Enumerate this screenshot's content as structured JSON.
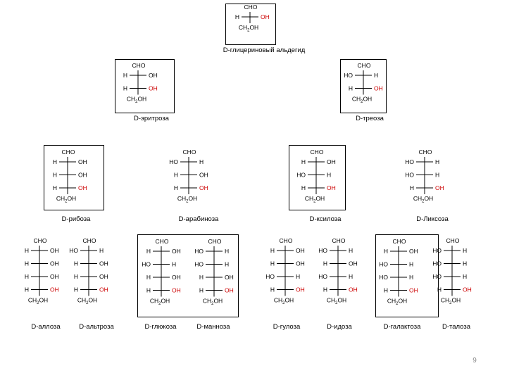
{
  "colors": {
    "text": "#000000",
    "highlight": "#cc0000",
    "box": "#000000",
    "page_number": "#8a8a8a"
  },
  "page_number": "9",
  "molecules": [
    {
      "id": "glyceraldehyde",
      "name": "D-глицериновый альдегид",
      "top": "CHO",
      "bottom_main": "CH",
      "bottom_sub": "2",
      "bottom_tail": "OH",
      "rows": [
        {
          "left": "H",
          "right": "OH",
          "red": "right"
        }
      ]
    },
    {
      "id": "erythrose",
      "name": "D-эритроза",
      "top": "CHO",
      "bottom_main": "CH",
      "bottom_sub": "2",
      "bottom_tail": "OH",
      "rows": [
        {
          "left": "H",
          "right": "OH",
          "red": ""
        },
        {
          "left": "H",
          "right": "OH",
          "red": "right"
        }
      ]
    },
    {
      "id": "threose",
      "name": "D-треоза",
      "top": "CHO",
      "bottom_main": "CH",
      "bottom_sub": "2",
      "bottom_tail": "OH",
      "rows": [
        {
          "left": "HO",
          "right": "H",
          "red": ""
        },
        {
          "left": "H",
          "right": "OH",
          "red": "right"
        }
      ]
    },
    {
      "id": "ribose",
      "name": "D-рибоза",
      "top": "CHO",
      "bottom_main": "CH",
      "bottom_sub": "2",
      "bottom_tail": "OH",
      "rows": [
        {
          "left": "H",
          "right": "OH",
          "red": ""
        },
        {
          "left": "H",
          "right": "OH",
          "red": ""
        },
        {
          "left": "H",
          "right": "OH",
          "red": "right"
        }
      ]
    },
    {
      "id": "arabinose",
      "name": "D-арабиноза",
      "top": "CHO",
      "bottom_main": "CH",
      "bottom_sub": "2",
      "bottom_tail": "OH",
      "rows": [
        {
          "left": "HO",
          "right": "H",
          "red": ""
        },
        {
          "left": "H",
          "right": "OH",
          "red": ""
        },
        {
          "left": "H",
          "right": "OH",
          "red": "right"
        }
      ]
    },
    {
      "id": "xylose",
      "name": "D-ксилоза",
      "top": "CHO",
      "bottom_main": "CH",
      "bottom_sub": "2",
      "bottom_tail": "OH",
      "rows": [
        {
          "left": "H",
          "right": "OH",
          "red": ""
        },
        {
          "left": "HO",
          "right": "H",
          "red": ""
        },
        {
          "left": "H",
          "right": "OH",
          "red": "right"
        }
      ]
    },
    {
      "id": "lyxose",
      "name": "D-Ликсоза",
      "top": "CHO",
      "bottom_main": "CH",
      "bottom_sub": "2",
      "bottom_tail": "OH",
      "rows": [
        {
          "left": "HO",
          "right": "H",
          "red": ""
        },
        {
          "left": "HO",
          "right": "H",
          "red": ""
        },
        {
          "left": "H",
          "right": "OH",
          "red": "right"
        }
      ]
    },
    {
      "id": "allose",
      "name": "D-аллоза",
      "top": "CHO",
      "bottom_main": "CH",
      "bottom_sub": "2",
      "bottom_tail": "OH",
      "rows": [
        {
          "left": "H",
          "right": "OH",
          "red": ""
        },
        {
          "left": "H",
          "right": "OH",
          "red": ""
        },
        {
          "left": "H",
          "right": "OH",
          "red": ""
        },
        {
          "left": "H",
          "right": "OH",
          "red": "right"
        }
      ]
    },
    {
      "id": "altrose",
      "name": "D-альтроза",
      "top": "CHO",
      "bottom_main": "CH",
      "bottom_sub": "2",
      "bottom_tail": "OH",
      "rows": [
        {
          "left": "HO",
          "right": "H",
          "red": ""
        },
        {
          "left": "H",
          "right": "OH",
          "red": ""
        },
        {
          "left": "H",
          "right": "OH",
          "red": ""
        },
        {
          "left": "H",
          "right": "OH",
          "red": "right"
        }
      ]
    },
    {
      "id": "glucose",
      "name": "D-глюкоза",
      "top": "CHO",
      "bottom_main": "CH",
      "bottom_sub": "2",
      "bottom_tail": "OH",
      "rows": [
        {
          "left": "H",
          "right": "OH",
          "red": ""
        },
        {
          "left": "HO",
          "right": "H",
          "red": ""
        },
        {
          "left": "H",
          "right": "OH",
          "red": ""
        },
        {
          "left": "H",
          "right": "OH",
          "red": "right"
        }
      ]
    },
    {
      "id": "mannose",
      "name": "D-манноза",
      "top": "CHO",
      "bottom_main": "CH",
      "bottom_sub": "2",
      "bottom_tail": "OH",
      "rows": [
        {
          "left": "HO",
          "right": "H",
          "red": ""
        },
        {
          "left": "HO",
          "right": "H",
          "red": ""
        },
        {
          "left": "H",
          "right": "OH",
          "red": ""
        },
        {
          "left": "H",
          "right": "OH",
          "red": "right"
        }
      ]
    },
    {
      "id": "gulose",
      "name": "D-гулоза",
      "top": "CHO",
      "bottom_main": "CH",
      "bottom_sub": "2",
      "bottom_tail": "OH",
      "rows": [
        {
          "left": "H",
          "right": "OH",
          "red": ""
        },
        {
          "left": "H",
          "right": "OH",
          "red": ""
        },
        {
          "left": "HO",
          "right": "H",
          "red": ""
        },
        {
          "left": "H",
          "right": "OH",
          "red": "right"
        }
      ]
    },
    {
      "id": "idose",
      "name": "D-идоза",
      "top": "CHO",
      "bottom_main": "CH",
      "bottom_sub": "2",
      "bottom_tail": "OH",
      "rows": [
        {
          "left": "HO",
          "right": "H",
          "red": ""
        },
        {
          "left": "H",
          "right": "OH",
          "red": ""
        },
        {
          "left": "HO",
          "right": "H",
          "red": ""
        },
        {
          "left": "H",
          "right": "OH",
          "red": "right"
        }
      ]
    },
    {
      "id": "galactose",
      "name": "D-галактоза",
      "top": "CHO",
      "bottom_main": "CH",
      "bottom_sub": "2",
      "bottom_tail": "OH",
      "rows": [
        {
          "left": "H",
          "right": "OH",
          "red": ""
        },
        {
          "left": "HO",
          "right": "H",
          "red": ""
        },
        {
          "left": "HO",
          "right": "H",
          "red": ""
        },
        {
          "left": "H",
          "right": "OH",
          "red": "right"
        }
      ]
    },
    {
      "id": "talose",
      "name": "D-талоза",
      "top": "CHO",
      "bottom_main": "CH",
      "bottom_sub": "2",
      "bottom_tail": "OH",
      "rows": [
        {
          "left": "HO",
          "right": "H",
          "red": ""
        },
        {
          "left": "HO",
          "right": "H",
          "red": ""
        },
        {
          "left": "HO",
          "right": "H",
          "red": ""
        },
        {
          "left": "H",
          "right": "OH",
          "red": "right"
        }
      ]
    }
  ]
}
